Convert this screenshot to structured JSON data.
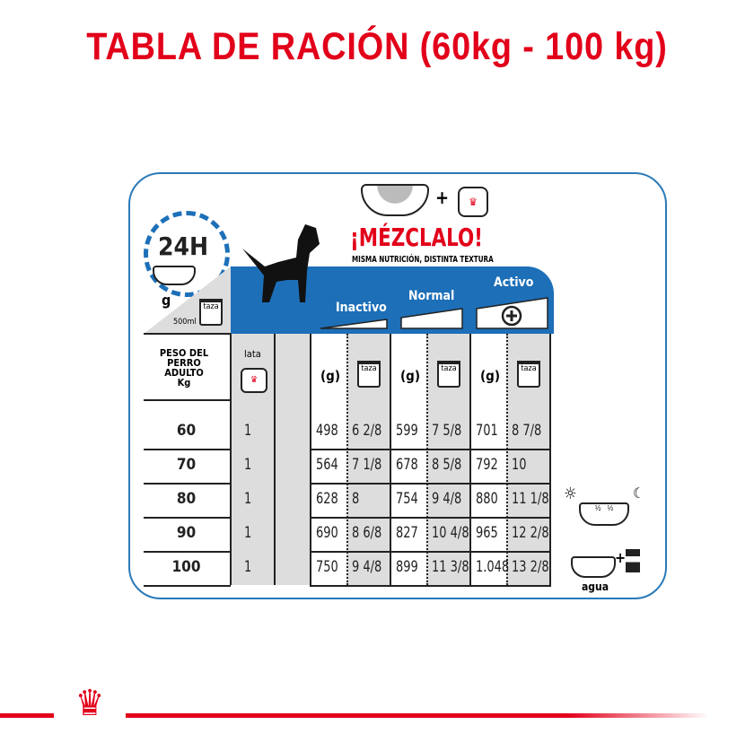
{
  "title": "TABLA DE RACIÓN (60kg - 100 kg)",
  "mix": {
    "headline": "¡MÉZCLALO!",
    "subtitle": "MISMA NUTRICIÓN, DISTINTA TEXTURA",
    "plus": "+"
  },
  "clock": {
    "label": "24H",
    "g": "g",
    "taza": "taza",
    "ml": "500ml"
  },
  "levels": [
    "Inactivo",
    "Normal",
    "Activo"
  ],
  "headers": {
    "weight": "PESO DEL PERRO ADULTO Kg",
    "lata": "lata",
    "g": "(g)",
    "taza": "taza"
  },
  "rows": [
    {
      "kg": "60",
      "lata": "1",
      "vals": [
        "498",
        "6 2/8",
        "599",
        "7 5/8",
        "701",
        "8 7/8"
      ]
    },
    {
      "kg": "70",
      "lata": "1",
      "vals": [
        "564",
        "7 1/8",
        "678",
        "8 5/8",
        "792",
        "10"
      ]
    },
    {
      "kg": "80",
      "lata": "1",
      "vals": [
        "628",
        "8",
        "754",
        "9 4/8",
        "880",
        "11 1/8"
      ]
    },
    {
      "kg": "90",
      "lata": "1",
      "vals": [
        "690",
        "8 6/8",
        "827",
        "10 4/8",
        "965",
        "12 2/8"
      ]
    },
    {
      "kg": "100",
      "lata": "1",
      "vals": [
        "750",
        "9 4/8",
        "899",
        "11 3/8",
        "1.048",
        "13 2/8"
      ]
    }
  ],
  "side": {
    "half": "½",
    "water": "agua",
    "plus": "+"
  },
  "colors": {
    "red": "#e2001a",
    "blue": "#1d6fb8"
  }
}
